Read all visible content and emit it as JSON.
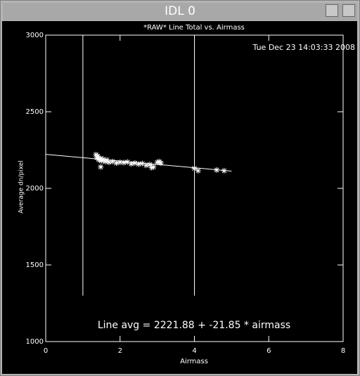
{
  "window": {
    "title": "IDL 0"
  },
  "chart_data": {
    "type": "scatter",
    "title": "*RAW* Line Total vs. Airmass",
    "timestamp": "Tue Dec 23 14:03:33 2008",
    "x_label": "Airmass",
    "y_label": "Average dn/pixel",
    "annotation": "Line avg = 2221.88 + -21.85 * airmass",
    "xlim": [
      0,
      8
    ],
    "xticks": [
      0,
      2,
      4,
      6,
      8
    ],
    "ylim": [
      1000,
      3000
    ],
    "yticks": [
      1000,
      1500,
      2000,
      2500,
      3000
    ],
    "color": "#ffffff",
    "x": [
      1.35,
      1.38,
      1.4,
      1.42,
      1.45,
      1.48,
      1.5,
      1.55,
      1.6,
      1.65,
      1.7,
      1.8,
      1.9,
      2.0,
      2.1,
      2.2,
      2.3,
      2.4,
      2.5,
      2.6,
      2.7,
      2.8,
      2.9,
      3.0,
      3.05,
      3.1,
      2.85,
      1.48,
      4.0,
      4.1,
      4.6,
      4.8
    ],
    "values": [
      2220,
      2200,
      2210,
      2190,
      2185,
      2195,
      2180,
      2190,
      2175,
      2185,
      2170,
      2175,
      2165,
      2170,
      2168,
      2172,
      2160,
      2165,
      2158,
      2162,
      2150,
      2155,
      2140,
      2170,
      2175,
      2165,
      2135,
      2140,
      2130,
      2115,
      2120,
      2115
    ],
    "fit": {
      "intercept": 2221.88,
      "slope": -21.85,
      "xlim": [
        0,
        5
      ]
    },
    "vlines": [
      {
        "x": 1,
        "ylim": [
          1300,
          3000
        ]
      },
      {
        "x": 4,
        "ylim": [
          1300,
          3000
        ]
      }
    ]
  }
}
